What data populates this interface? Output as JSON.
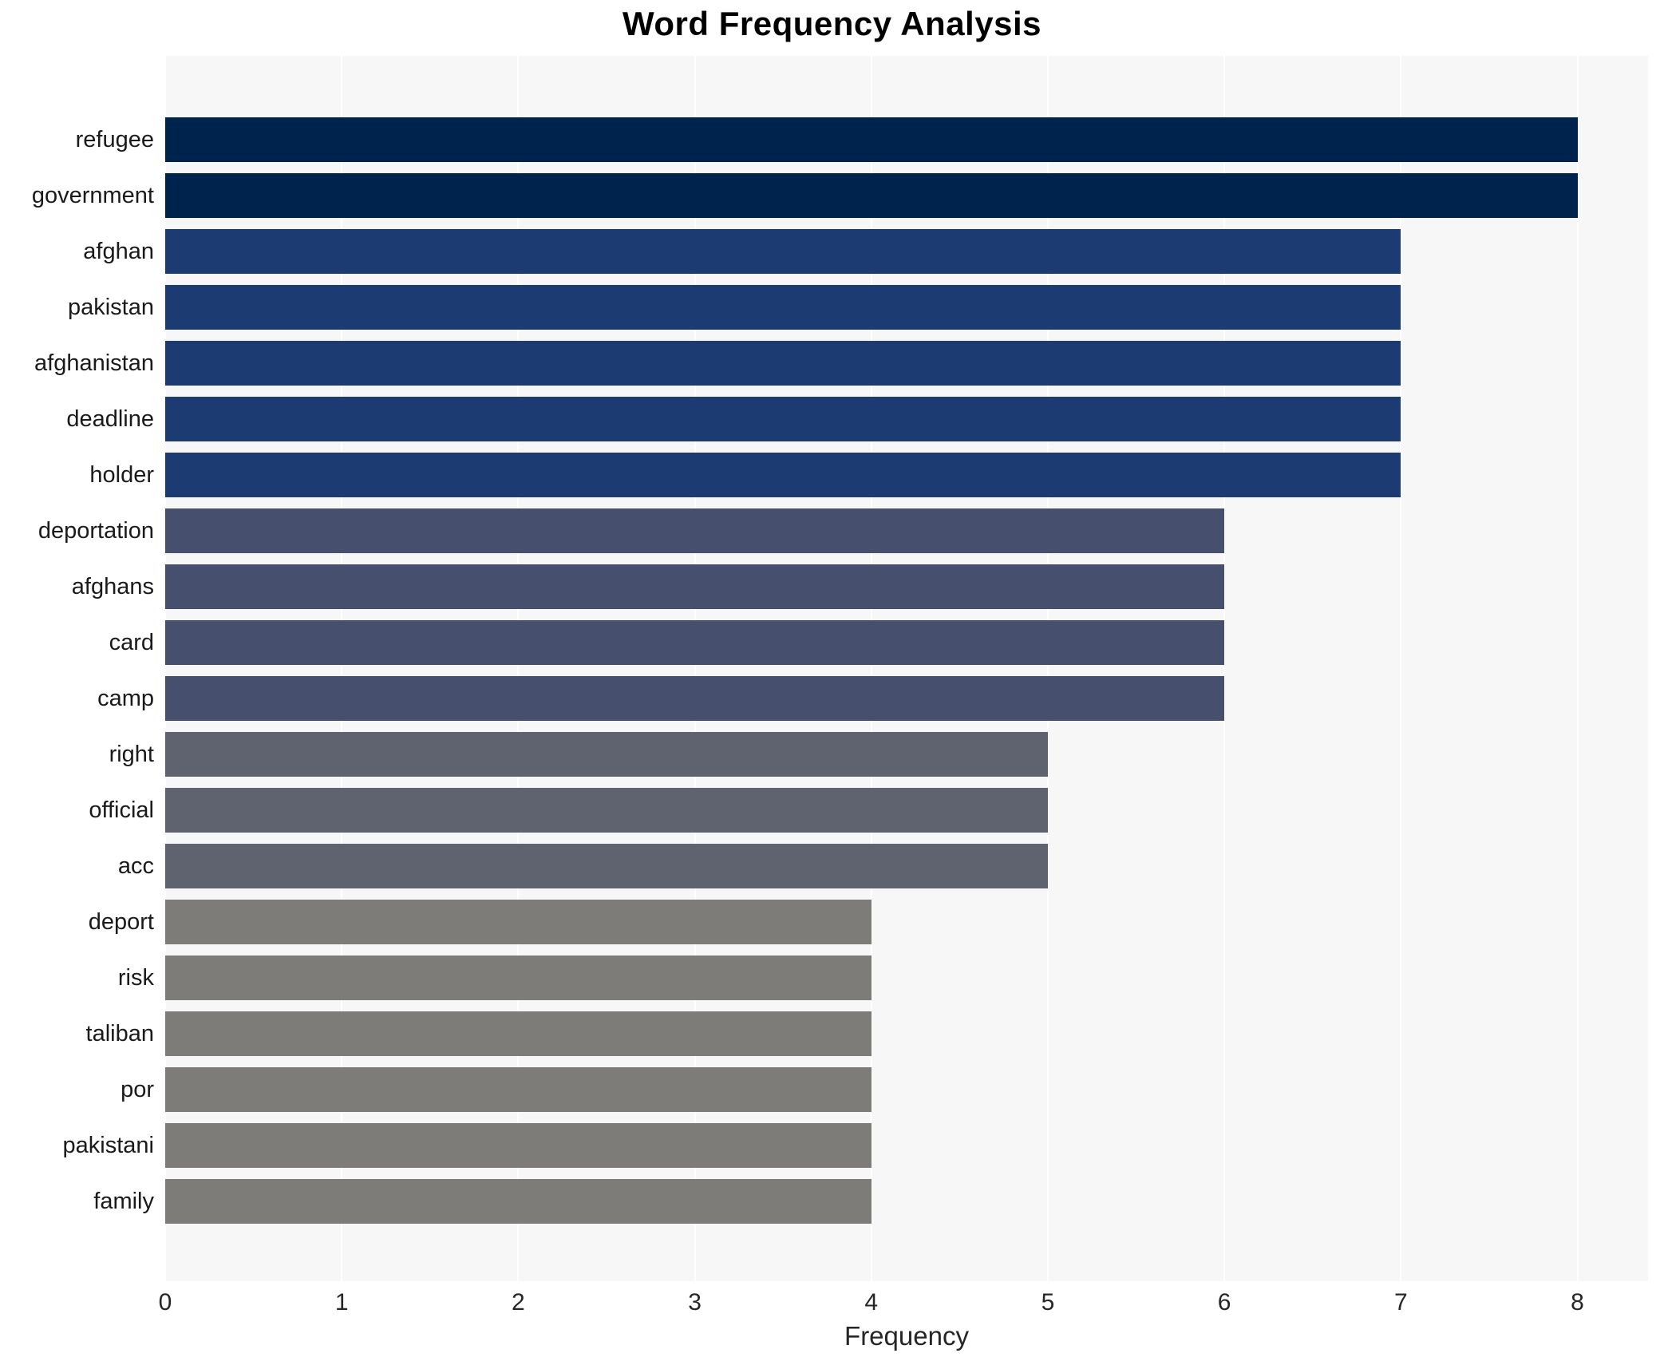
{
  "chart_data": {
    "type": "bar",
    "orientation": "horizontal",
    "title": "Word Frequency Analysis",
    "xlabel": "Frequency",
    "ylabel": "",
    "xlim": [
      0,
      8.4
    ],
    "xticks": [
      0,
      1,
      2,
      3,
      4,
      5,
      6,
      7,
      8
    ],
    "grid": true,
    "legend": "none",
    "categories": [
      "refugee",
      "government",
      "afghan",
      "pakistan",
      "afghanistan",
      "deadline",
      "holder",
      "deportation",
      "afghans",
      "card",
      "camp",
      "right",
      "official",
      "acc",
      "deport",
      "risk",
      "taliban",
      "por",
      "pakistani",
      "family"
    ],
    "values": [
      8,
      8,
      7,
      7,
      7,
      7,
      7,
      6,
      6,
      6,
      6,
      5,
      5,
      5,
      4,
      4,
      4,
      4,
      4,
      4
    ],
    "bar_colors": [
      "#00234e",
      "#00234e",
      "#1c3b72",
      "#1c3b72",
      "#1c3b72",
      "#1c3b72",
      "#1c3b72",
      "#46506e",
      "#46506e",
      "#46506e",
      "#46506e",
      "#5f6370",
      "#5f6370",
      "#5f6370",
      "#7d7c78",
      "#7d7c78",
      "#7d7c78",
      "#7d7c78",
      "#7d7c78",
      "#7d7c78"
    ]
  },
  "style": {
    "plot_background": "#f7f7f7",
    "grid_color": "#ffffff",
    "text_color": "#262626",
    "title_color": "#000000"
  }
}
